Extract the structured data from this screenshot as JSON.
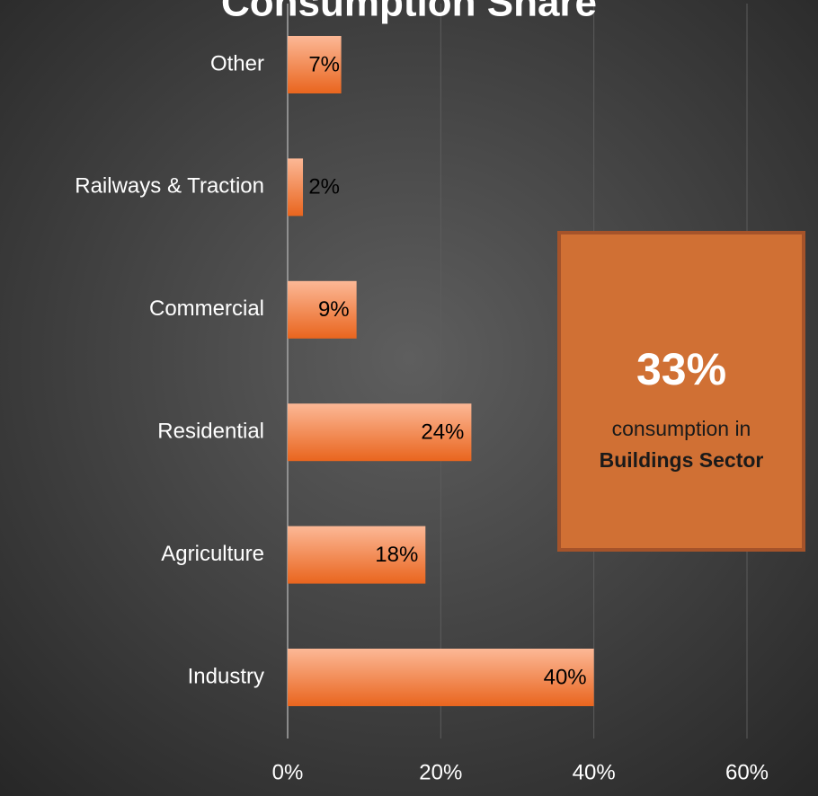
{
  "chart_data": {
    "type": "barh",
    "title": "Consumption Share",
    "categories": [
      "Other",
      "Railways & Traction",
      "Commercial",
      "Residential",
      "Agriculture",
      "Industry"
    ],
    "values": [
      7,
      2,
      9,
      24,
      18,
      40
    ],
    "value_labels": [
      "7%",
      "2%",
      "9%",
      "24%",
      "18%",
      "40%"
    ],
    "color": "#e9651e",
    "xlim": [
      0,
      60
    ],
    "xticks": [
      {
        "value": 0,
        "label": "0%"
      },
      {
        "value": 20,
        "label": "20%"
      },
      {
        "value": 40,
        "label": "40%"
      },
      {
        "value": 60,
        "label": "60%"
      }
    ],
    "grid": true,
    "annotation": {
      "value": "33%",
      "line1": "consumption in",
      "line2": "Buildings Sector"
    }
  }
}
